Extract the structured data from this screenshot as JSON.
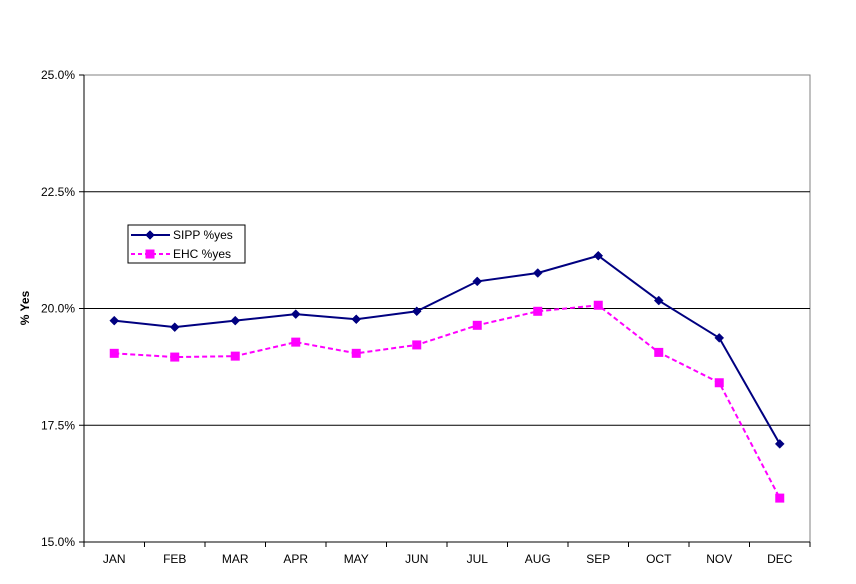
{
  "chart_data": {
    "type": "line",
    "title": "",
    "xlabel": "",
    "ylabel": "% Yes",
    "ylim": [
      15.0,
      25.0
    ],
    "yticks": [
      "15.0%",
      "17.5%",
      "20.0%",
      "22.5%",
      "25.0%"
    ],
    "ytick_values": [
      15.0,
      17.5,
      20.0,
      22.5,
      25.0
    ],
    "grid": "horizontal",
    "legend_position": "left",
    "categories": [
      "JAN",
      "FEB",
      "MAR",
      "APR",
      "MAY",
      "JUN",
      "JUL",
      "AUG",
      "SEP",
      "OCT",
      "NOV",
      "DEC"
    ],
    "series": [
      {
        "name": "SIPP %yes",
        "color": "#000080",
        "marker": "diamond",
        "line_style": "solid",
        "values": [
          19.74,
          19.6,
          19.74,
          19.88,
          19.77,
          19.94,
          20.58,
          20.76,
          21.13,
          20.17,
          19.37,
          17.1
        ]
      },
      {
        "name": "EHC %yes",
        "color": "#ff00ff",
        "marker": "square",
        "line_style": "dashed",
        "values": [
          19.04,
          18.96,
          18.98,
          19.28,
          19.04,
          19.22,
          19.64,
          19.94,
          20.07,
          19.06,
          18.41,
          15.94
        ]
      }
    ]
  }
}
